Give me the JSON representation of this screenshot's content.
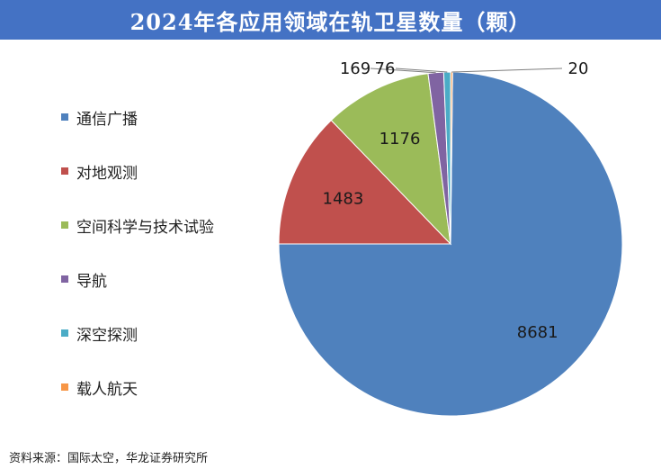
{
  "title": "2024年各应用领域在轨卫星数量（颗）",
  "source": "资料来源：国际太空，华龙证券研究所",
  "chart_data": {
    "type": "pie",
    "title": "2024年各应用领域在轨卫星数量（颗）",
    "legend_position": "left",
    "categories": [
      "通信广播",
      "对地观测",
      "空间科学与技术试验",
      "导航",
      "深空探测",
      "载人航天"
    ],
    "values": [
      8681,
      1483,
      1176,
      169,
      76,
      20
    ],
    "labels": [
      "8681",
      "1483",
      "1176",
      "169",
      "76",
      "20"
    ],
    "colors": [
      "#4f81bd",
      "#c0504d",
      "#9bbb59",
      "#8064a2",
      "#4bacc6",
      "#f79646"
    ]
  }
}
